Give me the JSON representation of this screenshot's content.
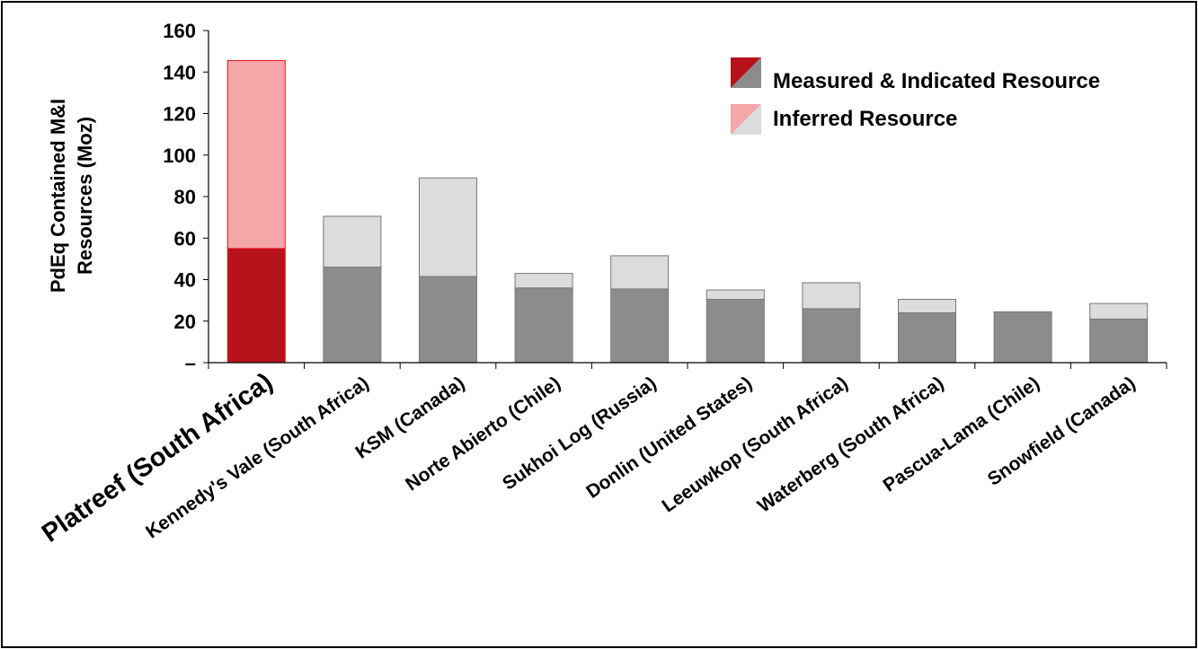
{
  "chart_data": {
    "type": "bar",
    "stacked": true,
    "ylabel_lines": [
      "PdEq Contained M&I",
      "Resources (Moz)"
    ],
    "ylim": [
      0,
      160
    ],
    "yticks": [
      {
        "value": 0,
        "label": "–"
      },
      {
        "value": 20,
        "label": "20"
      },
      {
        "value": 40,
        "label": "40"
      },
      {
        "value": 60,
        "label": "60"
      },
      {
        "value": 80,
        "label": "80"
      },
      {
        "value": 100,
        "label": "100"
      },
      {
        "value": 120,
        "label": "120"
      },
      {
        "value": 140,
        "label": "140"
      },
      {
        "value": 160,
        "label": "160"
      }
    ],
    "categories": [
      "Platreef (South Africa)",
      "Kennedy's Vale (South Africa)",
      "KSM (Canada)",
      "Norte Abierto (Chile)",
      "Sukhoi Log (Russia)",
      "Donlin (United States)",
      "Leeuwkop (South Africa)",
      "Waterberg (South Africa)",
      "Pascua-Lama (Chile)",
      "Snowfield (Canada)"
    ],
    "highlight_index": 0,
    "series": [
      {
        "name": "Measured & Indicated Resource",
        "values": [
          55,
          46,
          41.5,
          36,
          35.5,
          30.5,
          26,
          24,
          24.5,
          21
        ]
      },
      {
        "name": "Inferred Resource",
        "values": [
          90.5,
          24.5,
          47.5,
          7,
          16,
          4.5,
          12.5,
          6.5,
          0,
          7.5
        ]
      }
    ],
    "colors": {
      "mi_highlight": "#b5121b",
      "inferred_highlight": "#f4a6a8",
      "mi": "#8c8c8c",
      "inferred": "#dcdcdc",
      "highlight_label": "#e8131b",
      "bar_edge": "#777777",
      "bar_edge_highlight": "#e8131b"
    },
    "legend_position": "top-right",
    "grid": false
  }
}
